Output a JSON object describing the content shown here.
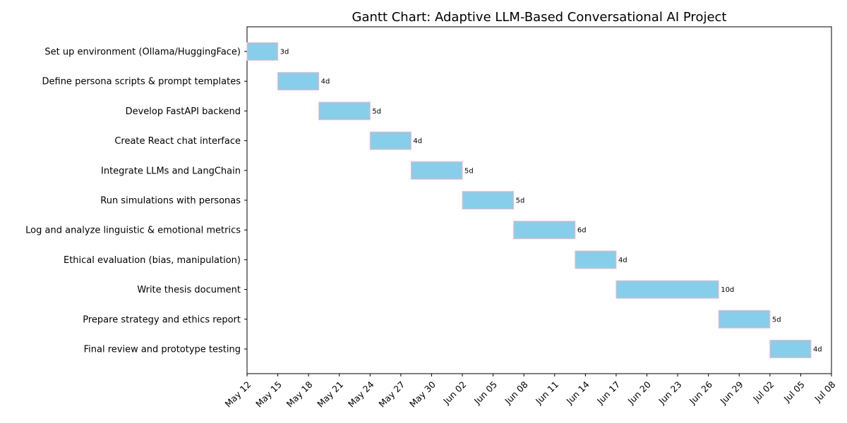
{
  "chart_data": {
    "type": "gantt",
    "title": "Gantt Chart: Adaptive LLM-Based Conversational AI Project",
    "tasks": [
      {
        "name": "Set up environment (Ollama/HuggingFace)",
        "start": "2024-05-12",
        "duration_days": 3,
        "label": "3d"
      },
      {
        "name": "Define persona scripts & prompt templates",
        "start": "2024-05-15",
        "duration_days": 4,
        "label": "4d"
      },
      {
        "name": "Develop FastAPI backend",
        "start": "2024-05-19",
        "duration_days": 5,
        "label": "5d"
      },
      {
        "name": "Create React chat interface",
        "start": "2024-05-24",
        "duration_days": 4,
        "label": "4d"
      },
      {
        "name": "Integrate LLMs and LangChain",
        "start": "2024-05-28",
        "duration_days": 5,
        "label": "5d"
      },
      {
        "name": "Run simulations with personas",
        "start": "2024-06-02",
        "duration_days": 5,
        "label": "5d"
      },
      {
        "name": "Log and analyze linguistic & emotional metrics",
        "start": "2024-06-07",
        "duration_days": 6,
        "label": "6d"
      },
      {
        "name": "Ethical evaluation (bias, manipulation)",
        "start": "2024-06-13",
        "duration_days": 4,
        "label": "4d"
      },
      {
        "name": "Write thesis document",
        "start": "2024-06-17",
        "duration_days": 10,
        "label": "10d"
      },
      {
        "name": "Prepare strategy and ethics report",
        "start": "2024-06-27",
        "duration_days": 5,
        "label": "5d"
      },
      {
        "name": "Final review and prototype testing",
        "start": "2024-07-02",
        "duration_days": 4,
        "label": "4d"
      }
    ],
    "x_ticks": [
      "May 12",
      "May 15",
      "May 18",
      "May 21",
      "May 24",
      "May 27",
      "May 30",
      "Jun 02",
      "Jun 05",
      "Jun 08",
      "Jun 11",
      "Jun 14",
      "Jun 17",
      "Jun 20",
      "Jun 23",
      "Jun 26",
      "Jun 29",
      "Jul 02",
      "Jul 05",
      "Jul 08"
    ],
    "x_tick_dates": [
      "2024-05-12",
      "2024-05-15",
      "2024-05-18",
      "2024-05-21",
      "2024-05-24",
      "2024-05-27",
      "2024-05-30",
      "2024-06-02",
      "2024-06-05",
      "2024-06-08",
      "2024-06-11",
      "2024-06-14",
      "2024-06-17",
      "2024-06-20",
      "2024-06-23",
      "2024-06-26",
      "2024-06-29",
      "2024-07-02",
      "2024-07-05",
      "2024-07-08"
    ],
    "xlim": [
      "2024-05-12",
      "2024-07-08"
    ],
    "grid": false,
    "bar_color": "#87ceeb",
    "bar_edge_color": "#ffb6c1"
  }
}
